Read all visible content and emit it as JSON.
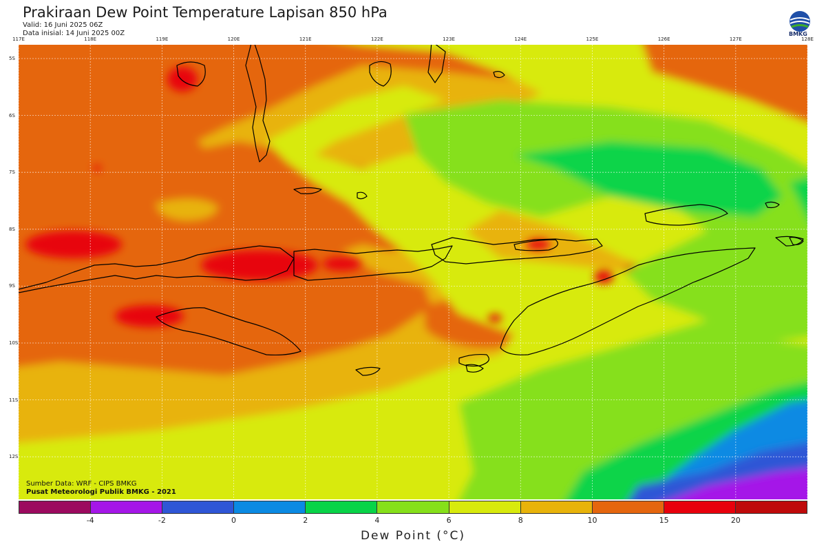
{
  "header": {
    "title": "Prakiraan Dew Point Temperature Lapisan 850 hPa",
    "valid": "Valid: 16 Juni 2025 06Z",
    "initial": "Data inisial: 14 Juni 2025 00Z",
    "logo_text": "BMKG"
  },
  "map": {
    "longitude_labels": [
      "117E",
      "118E",
      "119E",
      "120E",
      "121E",
      "122E",
      "123E",
      "124E",
      "125E",
      "126E",
      "127E",
      "128E"
    ],
    "latitude_labels": [
      "5S",
      "6S",
      "7S",
      "8S",
      "9S",
      "10S",
      "11S",
      "12S"
    ],
    "lon_range": [
      117,
      128
    ],
    "lat_range": [
      -4.8,
      -12.7
    ],
    "gridlines": true
  },
  "credits": {
    "source": "Sumber Data: WRF - CIPS BMKG",
    "org": "Pusat Meteorologi Publik BMKG - 2021"
  },
  "colorbar": {
    "colors": [
      "#9c0a5f",
      "#a516e8",
      "#2f56d6",
      "#0b8ae3",
      "#08d448",
      "#86e01a",
      "#d8ea0c",
      "#e8b30a",
      "#e5660e",
      "#e8000c",
      "#bf0a0a"
    ],
    "tick_labels": [
      "-4",
      "-2",
      "0",
      "2",
      "4",
      "6",
      "8",
      "10",
      "15",
      "20"
    ],
    "title": "Dew Point (°C)"
  }
}
